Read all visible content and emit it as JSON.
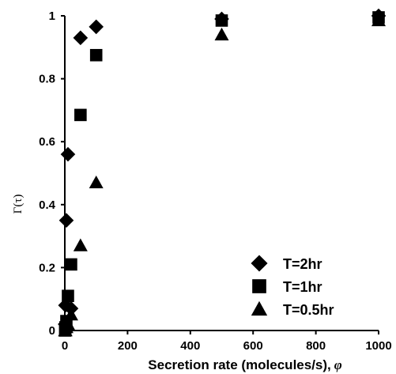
{
  "chart_data": {
    "type": "scatter",
    "title": "",
    "xlabel": "Secretion rate (molecules/s),",
    "xlabel_symbol": "φ",
    "ylabel": "Γ(τ)",
    "xlim": [
      0,
      1000
    ],
    "ylim": [
      0,
      1
    ],
    "x_ticks": [
      "0",
      "200",
      "400",
      "600",
      "800",
      "1000"
    ],
    "y_ticks": [
      "0",
      "0.2",
      "0.4",
      "0.6",
      "0.8",
      "1"
    ],
    "x_tick_values": [
      0,
      200,
      400,
      600,
      800,
      1000
    ],
    "y_tick_values": [
      0,
      0.2,
      0.4,
      0.6,
      0.8,
      1
    ],
    "grid": false,
    "legend_position": "bottom-right",
    "series": [
      {
        "name": "T=2hr",
        "marker": "diamond",
        "color": "#000000",
        "x": [
          1,
          2,
          5,
          10,
          20,
          50,
          100,
          500,
          1000
        ],
        "y": [
          0.02,
          0.08,
          0.35,
          0.56,
          0.07,
          0.93,
          0.965,
          0.99,
          1.0
        ]
      },
      {
        "name": "T=1hr",
        "marker": "square",
        "color": "#000000",
        "x": [
          1,
          2,
          5,
          10,
          20,
          50,
          100,
          500,
          1000
        ],
        "y": [
          0.0,
          0.01,
          0.03,
          0.11,
          0.21,
          0.685,
          0.875,
          0.985,
          0.995
        ]
      },
      {
        "name": "T=0.5hr",
        "marker": "triangle",
        "color": "#000000",
        "x": [
          1,
          2,
          5,
          10,
          20,
          50,
          100,
          500,
          1000
        ],
        "y": [
          0.0,
          0.0,
          0.01,
          0.02,
          0.05,
          0.27,
          0.47,
          0.94,
          0.985
        ]
      }
    ]
  }
}
